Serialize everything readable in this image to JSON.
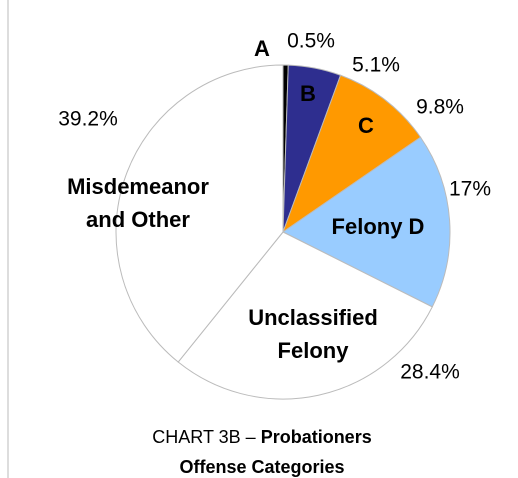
{
  "chart_data": {
    "type": "pie",
    "title": {
      "prefix": "CHART 3B –",
      "bold": "Probationers"
    },
    "subtitle": "Offense Categories",
    "categories": [
      "A",
      "B",
      "C",
      "Felony D",
      "Unclassified Felony",
      "Misdemeanor and Other"
    ],
    "values": [
      0.5,
      5.1,
      9.8,
      17,
      28.4,
      39.2
    ],
    "value_labels": [
      "0.5%",
      "5.1%",
      "9.8%",
      "17%",
      "28.4%",
      "39.2%"
    ],
    "colors": [
      "#000000",
      "#2e2e8f",
      "#ff9900",
      "#99ccff",
      "#ffffff",
      "#ffffff"
    ]
  }
}
